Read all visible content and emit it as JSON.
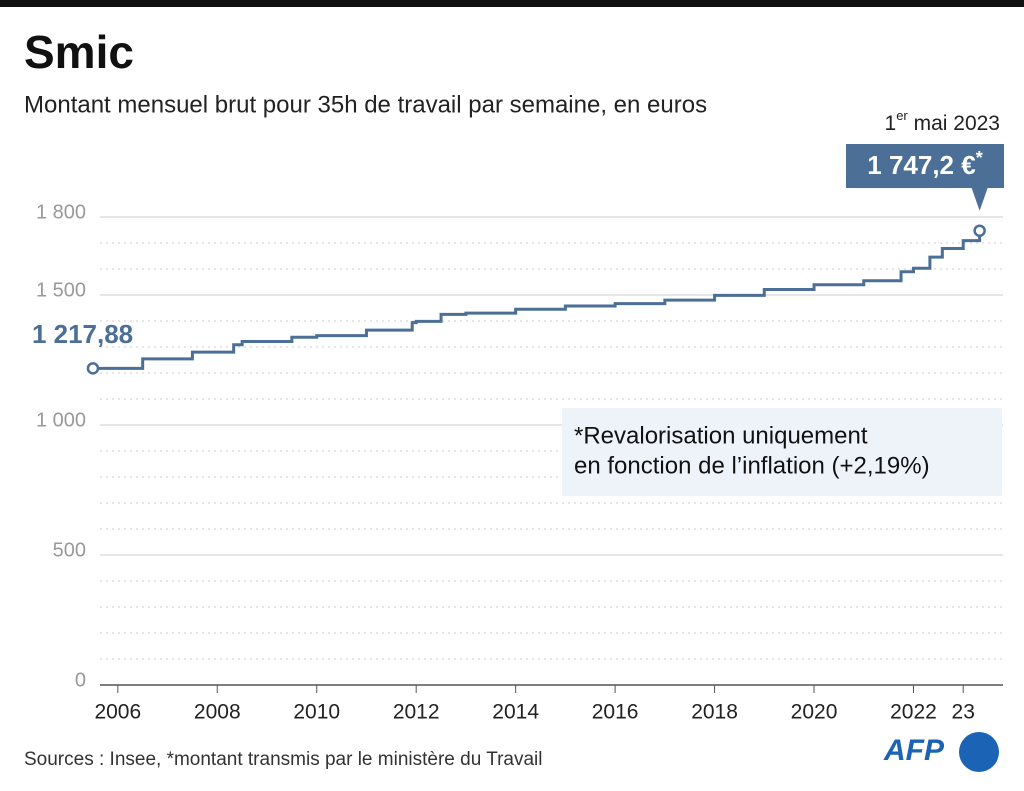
{
  "title": "Smic",
  "subtitle": "Montant mensuel brut pour 35h de travail par semaine, en euros",
  "chart_data": {
    "type": "step",
    "series": [
      {
        "color": "#4b6f96",
        "x": [
          2005.5,
          2006.5,
          2007.5,
          2008.33,
          2008.5,
          2009.5,
          2010,
          2011,
          2011.92,
          2012,
          2012.5,
          2013,
          2014,
          2015,
          2016,
          2017,
          2018,
          2019,
          2020,
          2021,
          2021.75,
          2022,
          2022.33,
          2022.58,
          2023,
          2023.33
        ],
        "values": [
          1217.88,
          1254.28,
          1280.07,
          1308.88,
          1321.02,
          1337.7,
          1343.77,
          1365,
          1393.82,
          1398.37,
          1425.67,
          1430.22,
          1445.38,
          1457.52,
          1466.62,
          1480.27,
          1498.47,
          1521.22,
          1539.42,
          1554.58,
          1589.47,
          1603.12,
          1645.58,
          1678.95,
          1709.28,
          1747.2
        ]
      }
    ],
    "xlim": [
      2005.3,
      2023.8
    ],
    "xticks": [
      2006,
      2008,
      2010,
      2012,
      2014,
      2016,
      2018,
      2020,
      2022,
      {
        "value": 2023,
        "label": "23"
      }
    ],
    "ylim": [
      0,
      2000
    ],
    "yticks": [
      0,
      500,
      {
        "value": 1000,
        "label": "1 000"
      },
      {
        "value": 1500,
        "label": "1 500"
      },
      {
        "value": 1800,
        "label": "1 800"
      }
    ],
    "minor_yticks": [
      100,
      200,
      300,
      400,
      600,
      700,
      800,
      900,
      1100,
      1200,
      1300,
      1400,
      1600,
      1700
    ],
    "grid": true,
    "annotations": {
      "start_label": "1 217,88",
      "end_date": [
        "1",
        "er",
        " mai 2023"
      ],
      "end_label": [
        "1 747,2 €",
        "*"
      ],
      "note": [
        "*Revalorisation uniquement",
        "en fonction de l’inflation (+2,19%)"
      ]
    }
  },
  "source": "Sources : Insee, *montant transmis par le ministère du Travail",
  "logo": "AFP"
}
